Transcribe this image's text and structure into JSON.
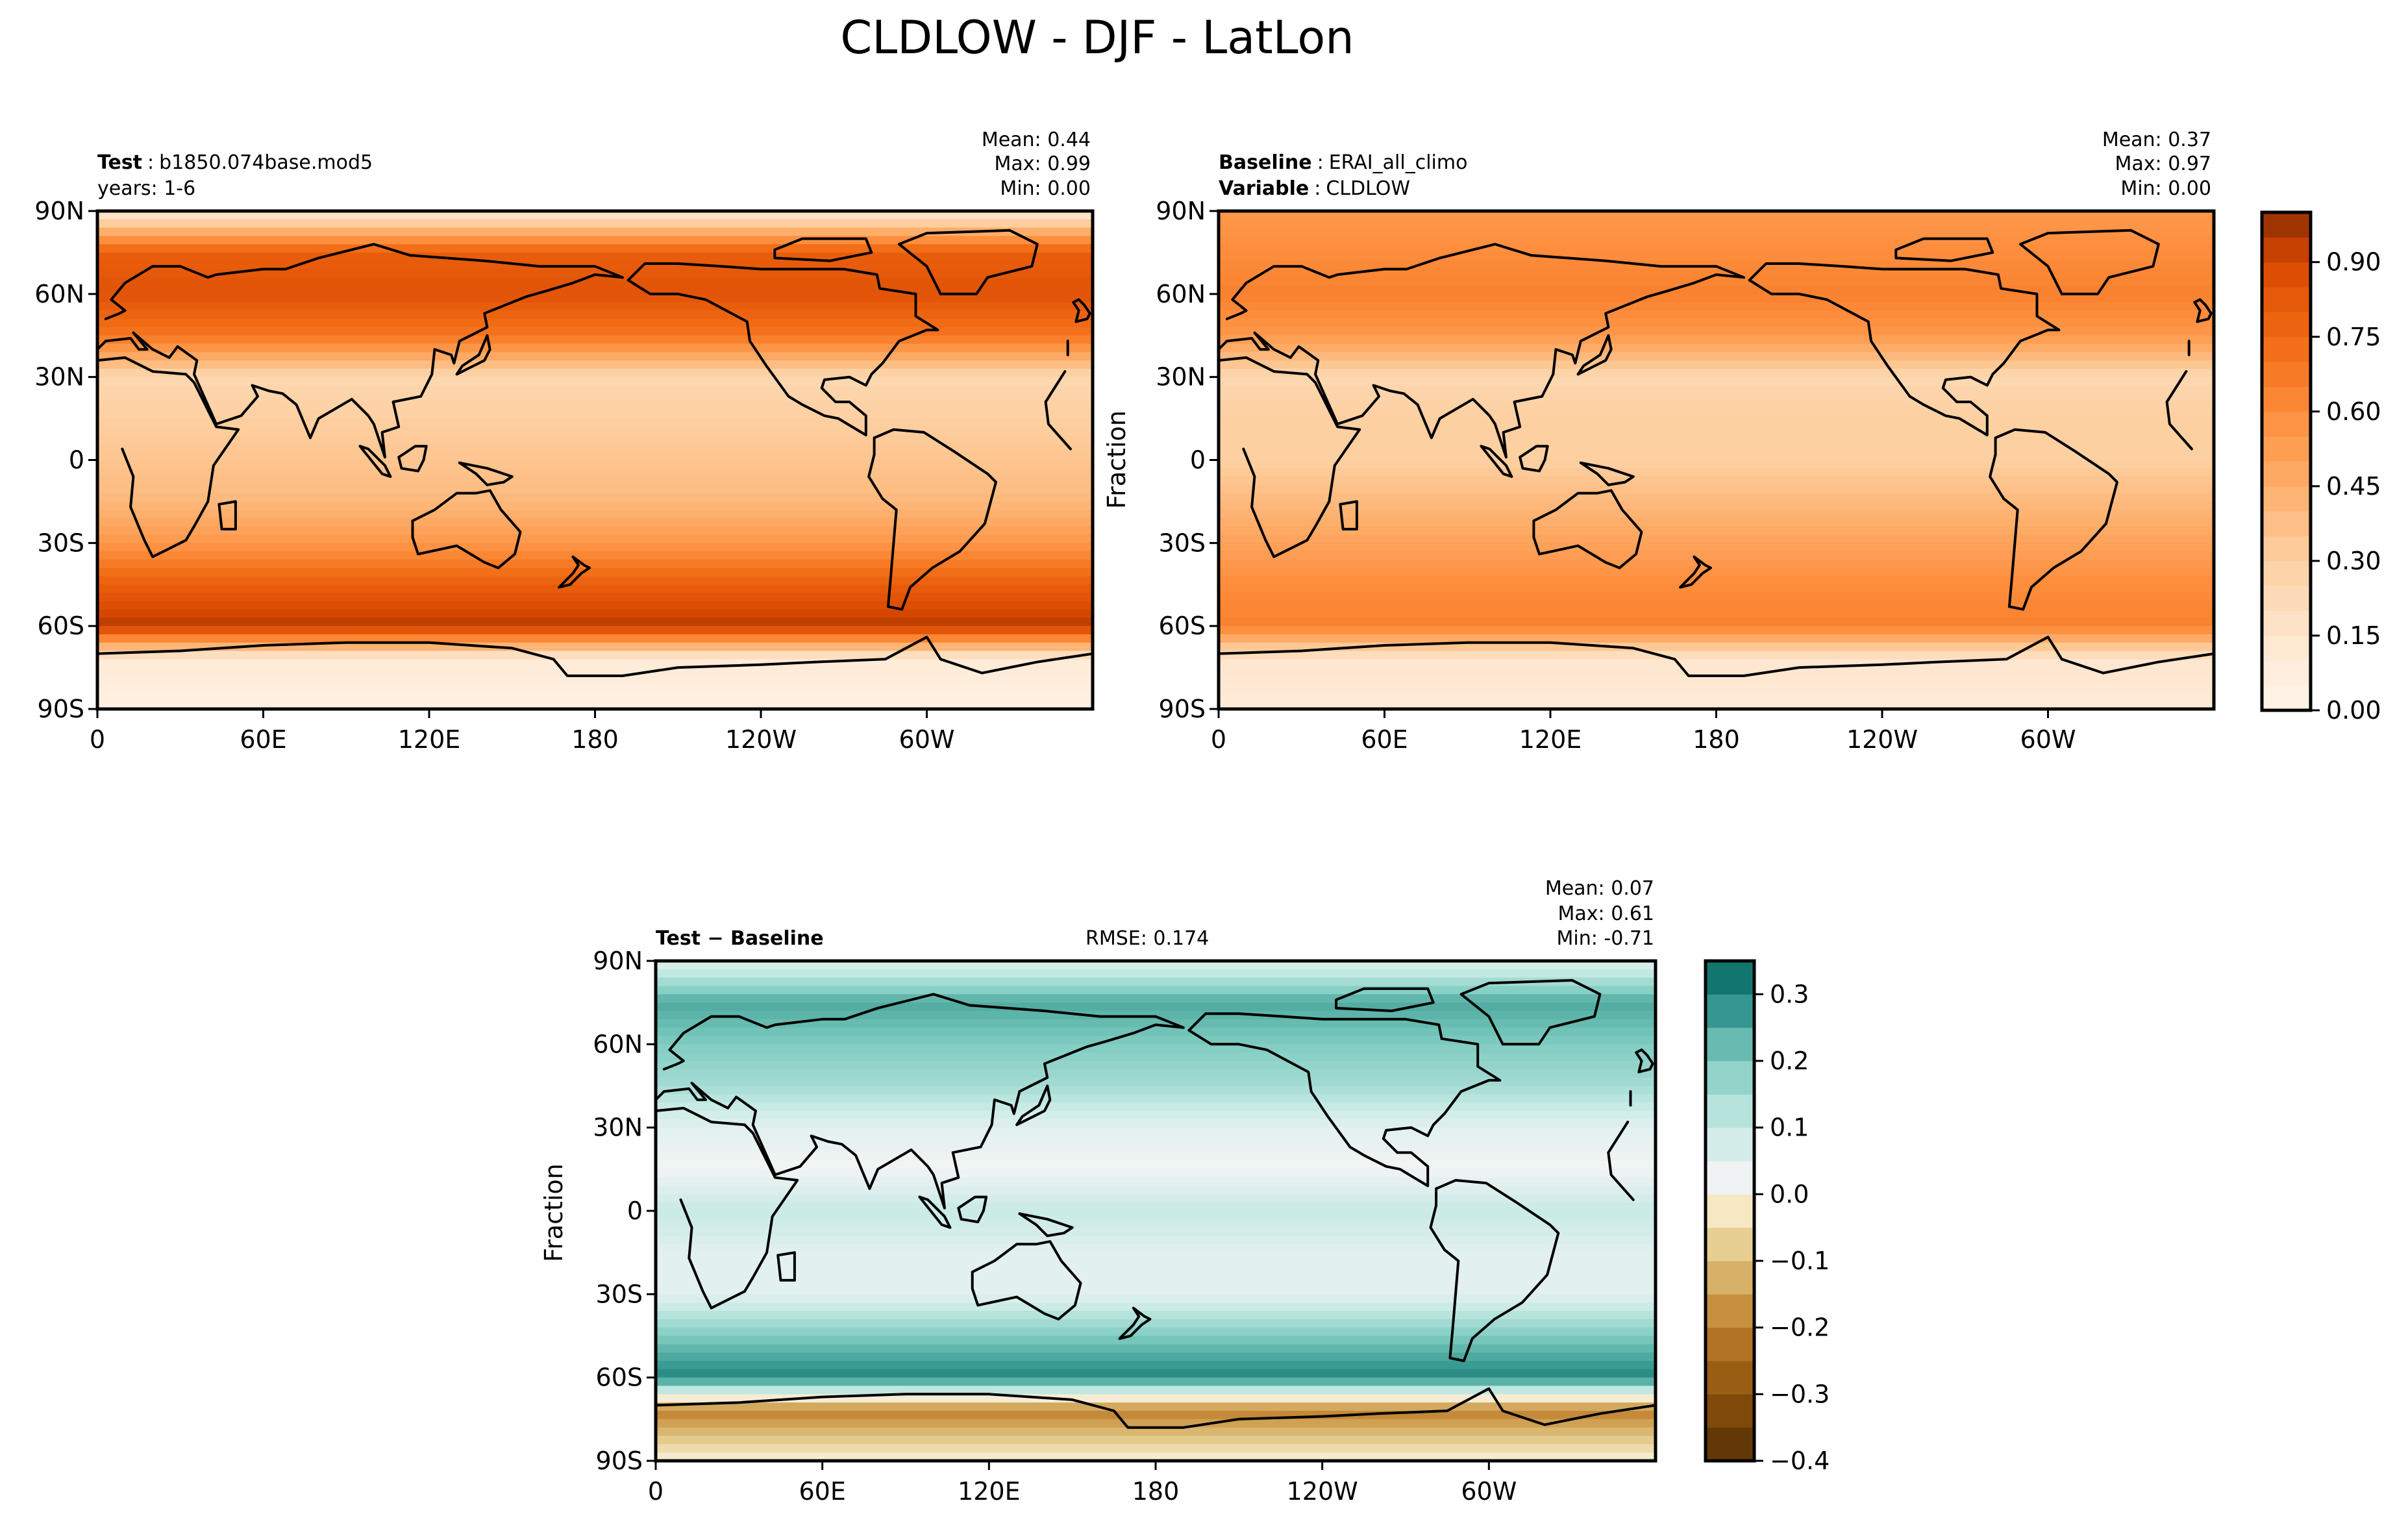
{
  "figure": {
    "title": "CLDLOW - DJF - LatLon"
  },
  "chart_data": [
    {
      "type": "heatmap",
      "panel": "test",
      "label_bold": "Test",
      "label_text": "b1850.074base.mod5",
      "label_line2": "years: 1-6",
      "stats": {
        "mean": "Mean:  0.44",
        "max": "Max:  0.99",
        "min": "Min:  0.00"
      },
      "ylabel": "",
      "x_ticks": [
        "0",
        "60E",
        "120E",
        "180",
        "120W",
        "60W"
      ],
      "y_ticks": [
        "90N",
        "60N",
        "30N",
        "0",
        "30S",
        "60S",
        "90S"
      ],
      "colormap": "Oranges",
      "zonal_profile": [
        {
          "lat": 90,
          "value": 0.1
        },
        {
          "lat": 75,
          "value": 0.8
        },
        {
          "lat": 60,
          "value": 0.85
        },
        {
          "lat": 45,
          "value": 0.7
        },
        {
          "lat": 30,
          "value": 0.25
        },
        {
          "lat": 15,
          "value": 0.3
        },
        {
          "lat": 0,
          "value": 0.35
        },
        {
          "lat": -15,
          "value": 0.4
        },
        {
          "lat": -30,
          "value": 0.55
        },
        {
          "lat": -45,
          "value": 0.8
        },
        {
          "lat": -60,
          "value": 0.95
        },
        {
          "lat": -72,
          "value": 0.1
        },
        {
          "lat": -90,
          "value": 0.05
        }
      ]
    },
    {
      "type": "heatmap",
      "panel": "baseline",
      "label_bold": "Baseline",
      "label_text": "ERAI_all_climo",
      "label_line2_bold": "Variable",
      "label_line2_text": "CLDLOW",
      "stats": {
        "mean": "Mean:  0.37",
        "max": "Max:  0.97",
        "min": "Min:  0.00"
      },
      "ylabel": "Fraction",
      "x_ticks": [
        "0",
        "60E",
        "120E",
        "180",
        "120W",
        "60W"
      ],
      "y_ticks": [
        "90N",
        "60N",
        "30N",
        "0",
        "30S",
        "60S",
        "90S"
      ],
      "colormap": "Oranges",
      "colorbar": {
        "ticks": [
          "0.00",
          "0.15",
          "0.30",
          "0.45",
          "0.60",
          "0.75",
          "0.90"
        ],
        "range": [
          0,
          1.0
        ],
        "levels": 20
      },
      "zonal_profile": [
        {
          "lat": 90,
          "value": 0.55
        },
        {
          "lat": 75,
          "value": 0.6
        },
        {
          "lat": 60,
          "value": 0.65
        },
        {
          "lat": 45,
          "value": 0.55
        },
        {
          "lat": 30,
          "value": 0.25
        },
        {
          "lat": 15,
          "value": 0.3
        },
        {
          "lat": 0,
          "value": 0.3
        },
        {
          "lat": -15,
          "value": 0.4
        },
        {
          "lat": -30,
          "value": 0.5
        },
        {
          "lat": -45,
          "value": 0.6
        },
        {
          "lat": -60,
          "value": 0.65
        },
        {
          "lat": -72,
          "value": 0.15
        },
        {
          "lat": -90,
          "value": 0.1
        }
      ]
    },
    {
      "type": "heatmap",
      "panel": "difference",
      "label_bold": "Test − Baseline",
      "rmse": "RMSE: 0.174",
      "stats": {
        "mean": "Mean:  0.07",
        "max": "Max:  0.61",
        "min": "Min: -0.71"
      },
      "ylabel": "Fraction",
      "x_ticks": [
        "0",
        "60E",
        "120E",
        "180",
        "120W",
        "60W"
      ],
      "y_ticks": [
        "90N",
        "60N",
        "30N",
        "0",
        "30S",
        "60S",
        "90S"
      ],
      "colormap": "BrBG",
      "colorbar": {
        "ticks": [
          "−0.4",
          "−0.3",
          "−0.2",
          "−0.1",
          "0.0",
          "0.1",
          "0.2",
          "0.3"
        ],
        "tick_values": [
          -0.4,
          -0.3,
          -0.2,
          -0.1,
          0.0,
          0.1,
          0.2,
          0.3
        ],
        "range": [
          -0.4,
          0.35
        ],
        "levels": 15
      },
      "zonal_profile": [
        {
          "lat": 90,
          "value": 0.05
        },
        {
          "lat": 75,
          "value": 0.25
        },
        {
          "lat": 60,
          "value": 0.2
        },
        {
          "lat": 45,
          "value": 0.15
        },
        {
          "lat": 30,
          "value": 0.05
        },
        {
          "lat": 15,
          "value": 0.02
        },
        {
          "lat": 0,
          "value": 0.1
        },
        {
          "lat": -15,
          "value": 0.05
        },
        {
          "lat": -30,
          "value": 0.05
        },
        {
          "lat": -45,
          "value": 0.2
        },
        {
          "lat": -60,
          "value": 0.3
        },
        {
          "lat": -72,
          "value": -0.2
        },
        {
          "lat": -90,
          "value": 0.0
        }
      ]
    }
  ]
}
